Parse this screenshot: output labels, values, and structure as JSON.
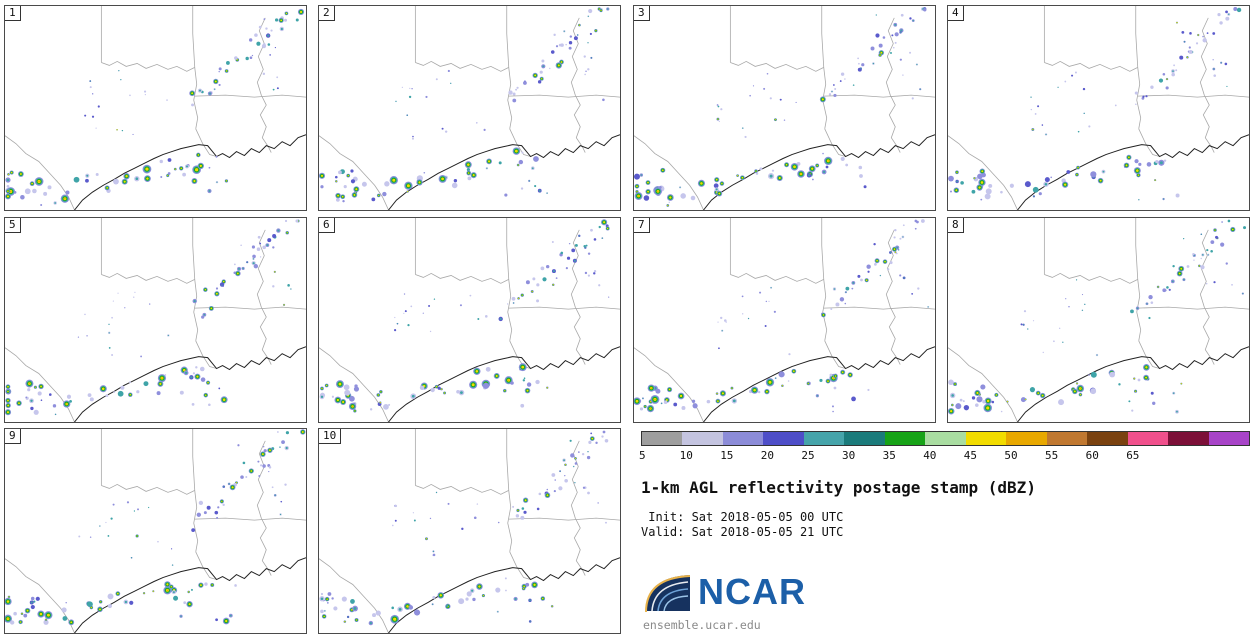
{
  "title": "1-km AGL reflectivity postage stamp (dBZ)",
  "init_line": " Init: Sat 2018-05-05 00 UTC",
  "valid_line": "Valid: Sat 2018-05-05 21 UTC",
  "logo_text": "NCAR",
  "footer": "ensemble.ucar.edu",
  "panels": [
    {
      "id": 1,
      "label": "1"
    },
    {
      "id": 2,
      "label": "2"
    },
    {
      "id": 3,
      "label": "3"
    },
    {
      "id": 4,
      "label": "4"
    },
    {
      "id": 5,
      "label": "5"
    },
    {
      "id": 6,
      "label": "6"
    },
    {
      "id": 7,
      "label": "7"
    },
    {
      "id": 8,
      "label": "8"
    },
    {
      "id": 9,
      "label": "9"
    },
    {
      "id": 10,
      "label": "10"
    }
  ],
  "chart_data": {
    "type": "heatmap",
    "title": "1-km AGL reflectivity postage stamp (dBZ)",
    "units": "dBZ",
    "init": "Sat 2018-05-05 00 UTC",
    "valid": "Sat 2018-05-05 21 UTC",
    "ensemble_members": [
      1,
      2,
      3,
      4,
      5,
      6,
      7,
      8,
      9,
      10
    ],
    "colorbar": {
      "ticks": [
        5,
        10,
        15,
        20,
        25,
        30,
        35,
        40,
        45,
        50,
        55,
        60,
        65
      ],
      "tick_step_dbz": 5,
      "colors": [
        "#9e9e9e",
        "#c4c4e0",
        "#8c8cd8",
        "#4e4ec8",
        "#46a4aa",
        "#1b7b7b",
        "#17a317",
        "#a9dda1",
        "#f2dc00",
        "#e8a800",
        "#c07830",
        "#7a4210",
        "#f0508c",
        "#7c1038",
        "#a844c8"
      ]
    },
    "echo_palette": [
      "#c6c6ec",
      "#8f8fdc",
      "#5a5acc",
      "#3fa4a8",
      "#17a317",
      "#aadda2",
      "#f2dc00",
      "#eca800"
    ],
    "echo_clusters": [
      {
        "kind": "line",
        "a": [
          0.97,
          0.0
        ],
        "b": [
          0.63,
          0.47
        ],
        "n": 34,
        "jit": 0.035,
        "pstrong": 0.18,
        "rmin": 1.0,
        "rmax": 3.2
      },
      {
        "kind": "line",
        "a": [
          0.8,
          0.06
        ],
        "b": [
          0.95,
          0.42
        ],
        "n": 10,
        "jit": 0.05,
        "pstrong": 0.05,
        "rmin": 0.8,
        "rmax": 2.0
      },
      {
        "kind": "line",
        "a": [
          0.1,
          0.94
        ],
        "b": [
          0.7,
          0.74
        ],
        "n": 30,
        "jit": 0.045,
        "pstrong": 0.38,
        "rmin": 1.0,
        "rmax": 4.5
      },
      {
        "kind": "spot",
        "c": [
          0.05,
          0.88
        ],
        "s": 0.075,
        "n": 16,
        "pstrong": 0.5,
        "rmin": 1.2,
        "rmax": 4.5
      },
      {
        "kind": "spot",
        "c": [
          0.4,
          0.52
        ],
        "s": 0.16,
        "n": 9,
        "pstrong": 0.03,
        "rmin": 0.7,
        "rmax": 1.8
      },
      {
        "kind": "spot",
        "c": [
          0.68,
          0.86
        ],
        "s": 0.1,
        "n": 8,
        "pstrong": 0.3,
        "rmin": 1.0,
        "rmax": 3.5
      },
      {
        "kind": "line",
        "a": [
          0.25,
          0.55
        ],
        "b": [
          0.45,
          0.35
        ],
        "n": 7,
        "jit": 0.06,
        "pstrong": 0.0,
        "rmin": 0.7,
        "rmax": 1.6
      }
    ]
  }
}
